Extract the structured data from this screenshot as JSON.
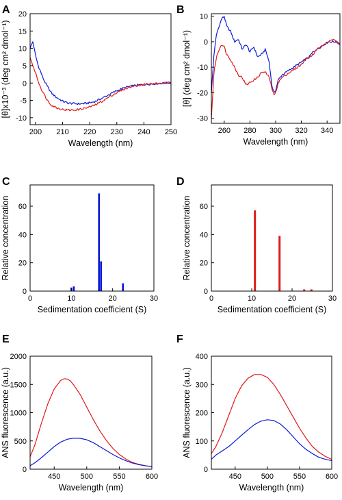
{
  "colors": {
    "blue": "#0a18d6",
    "red": "#e01818",
    "axis": "#000000"
  },
  "chart_data": [
    {
      "panel": "A",
      "type": "line",
      "xlabel": "Wavelength (nm)",
      "ylabel": "[θ]x10⁻³ (deg cm² dmol⁻¹)",
      "xlim": [
        198,
        250
      ],
      "ylim": [
        -12,
        20
      ],
      "xticks": [
        200,
        210,
        220,
        230,
        240,
        250
      ],
      "xticklabels": [
        "200",
        "210",
        "220",
        "230",
        "240",
        "250"
      ],
      "yticks": [
        -10,
        -5,
        0,
        5,
        10,
        15,
        20
      ],
      "yticklabels": [
        "-10",
        "-5",
        "0",
        "5",
        "10",
        "15",
        "20"
      ],
      "noisy": true,
      "series": [
        {
          "color": "blue",
          "x": [
            198,
            199,
            200,
            201,
            202,
            203,
            204,
            205,
            206,
            208,
            210,
            212,
            214,
            216,
            218,
            220,
            222,
            224,
            226,
            228,
            230,
            232,
            234,
            236,
            238,
            240,
            242,
            244,
            246,
            248,
            250
          ],
          "y": [
            10,
            12,
            8,
            5,
            3,
            1,
            -0.5,
            -1.8,
            -3,
            -4.3,
            -5.2,
            -5.8,
            -5.9,
            -6,
            -5.9,
            -5.7,
            -5.3,
            -4.6,
            -3.8,
            -3,
            -2.2,
            -1.6,
            -1.1,
            -0.8,
            -0.6,
            -0.4,
            -0.3,
            -0.2,
            -0.1,
            0,
            0.1
          ]
        },
        {
          "color": "red",
          "x": [
            198,
            199,
            200,
            201,
            202,
            203,
            204,
            205,
            206,
            208,
            210,
            212,
            214,
            216,
            218,
            220,
            222,
            224,
            226,
            228,
            230,
            232,
            234,
            236,
            238,
            240,
            242,
            244,
            246,
            248,
            250
          ],
          "y": [
            7.5,
            5,
            3,
            0.5,
            -1.5,
            -3,
            -4.5,
            -5.6,
            -6.4,
            -7.2,
            -7.6,
            -7.8,
            -7.8,
            -7.6,
            -7.3,
            -6.9,
            -6.3,
            -5.5,
            -4.6,
            -3.6,
            -2.8,
            -2,
            -1.4,
            -0.9,
            -0.6,
            -0.4,
            -0.3,
            -0.2,
            -0.1,
            0,
            0.1
          ]
        }
      ]
    },
    {
      "panel": "B",
      "type": "line",
      "xlabel": "Wavelength (nm)",
      "ylabel": "[θ] (deg cm² dmol⁻¹)",
      "xlim": [
        250,
        350
      ],
      "ylim": [
        -32,
        11
      ],
      "xticks": [
        260,
        280,
        300,
        320,
        340
      ],
      "xticklabels": [
        "260",
        "280",
        "300",
        "320",
        "340"
      ],
      "yticks": [
        -30,
        -20,
        -10,
        0,
        10
      ],
      "yticklabels": [
        "-30",
        "-20",
        "-10",
        "0",
        "10"
      ],
      "noisy": true,
      "series": [
        {
          "color": "blue",
          "x": [
            250,
            252,
            254,
            256,
            258,
            260,
            262,
            265,
            268,
            271,
            274,
            277,
            280,
            283,
            286,
            289,
            292,
            295,
            297,
            298,
            299,
            300,
            302,
            305,
            308,
            311,
            314,
            317,
            320,
            323,
            326,
            329,
            332,
            335,
            338,
            341,
            344,
            347,
            350
          ],
          "y": [
            -20,
            -5,
            3,
            6,
            9,
            10,
            6,
            4,
            0,
            1,
            -3,
            -1,
            -4,
            -2,
            -6,
            -5,
            -3,
            -8,
            -17,
            -19,
            -20,
            -19,
            -15,
            -13,
            -12,
            -11,
            -10,
            -9,
            -8,
            -7,
            -6,
            -4,
            -3,
            -2,
            -1,
            0,
            0,
            0,
            -1
          ]
        },
        {
          "color": "red",
          "x": [
            250,
            252,
            254,
            256,
            258,
            260,
            262,
            265,
            268,
            271,
            274,
            277,
            280,
            283,
            286,
            289,
            292,
            295,
            297,
            298,
            299,
            300,
            302,
            305,
            308,
            311,
            314,
            317,
            320,
            323,
            326,
            329,
            332,
            335,
            338,
            341,
            344,
            347,
            350
          ],
          "y": [
            -30,
            -12,
            -6,
            -3,
            -1,
            -2,
            -5,
            -7,
            -10,
            -13,
            -14,
            -17,
            -16,
            -15,
            -14,
            -12,
            -12,
            -14,
            -18,
            -20,
            -21,
            -20,
            -16,
            -14,
            -13,
            -12,
            -11,
            -10,
            -9,
            -7,
            -6,
            -5,
            -3,
            -2,
            -1,
            0,
            1,
            0,
            -1
          ]
        }
      ]
    },
    {
      "panel": "C",
      "type": "bar",
      "xlabel": "Sedimentation coefficient (S)",
      "ylabel": "Relative concentration",
      "xlim": [
        0,
        30
      ],
      "ylim": [
        0,
        75
      ],
      "xticks": [
        0,
        10,
        20,
        30
      ],
      "xticklabels": [
        "0",
        "10",
        "20",
        "30"
      ],
      "yticks": [
        0,
        20,
        40,
        60
      ],
      "yticklabels": [
        "0",
        "20",
        "40",
        "60"
      ],
      "bar_width": 0.45,
      "series": [
        {
          "color": "blue",
          "x": [
            10.0,
            10.6,
            16.7,
            17.2,
            22.5
          ],
          "y": [
            2.5,
            3.3,
            69,
            21,
            5.5
          ]
        }
      ]
    },
    {
      "panel": "D",
      "type": "bar",
      "xlabel": "Sedimentation coefficient (S)",
      "ylabel": "Relative concentration",
      "xlim": [
        0,
        30
      ],
      "ylim": [
        0,
        75
      ],
      "xticks": [
        0,
        10,
        20,
        30
      ],
      "xticklabels": [
        "0",
        "10",
        "20",
        "30"
      ],
      "yticks": [
        0,
        20,
        40,
        60
      ],
      "yticklabels": [
        "0",
        "20",
        "40",
        "60"
      ],
      "bar_width": 0.5,
      "series": [
        {
          "color": "red",
          "x": [
            10.8,
            16.9,
            23.0,
            24.8
          ],
          "y": [
            57,
            39,
            1.2,
            1.2
          ]
        }
      ]
    },
    {
      "panel": "E",
      "type": "line",
      "xlabel": "Wavelength (nm)",
      "ylabel": "ANS fluorescence (a.u.)",
      "xlim": [
        413,
        600
      ],
      "ylim": [
        0,
        2000
      ],
      "xticks": [
        450,
        500,
        550,
        600
      ],
      "xticklabels": [
        "450",
        "500",
        "550",
        "600"
      ],
      "yticks": [
        0,
        500,
        1000,
        1500,
        2000
      ],
      "yticklabels": [
        "0",
        "500",
        "1000",
        "1500",
        "2000"
      ],
      "noisy": false,
      "series": [
        {
          "color": "red",
          "x": [
            413,
            420,
            430,
            440,
            450,
            460,
            465,
            470,
            475,
            480,
            490,
            500,
            510,
            520,
            530,
            540,
            550,
            560,
            570,
            580,
            590,
            600
          ],
          "y": [
            220,
            420,
            800,
            1150,
            1420,
            1570,
            1600,
            1595,
            1560,
            1490,
            1320,
            1100,
            880,
            680,
            510,
            370,
            260,
            180,
            120,
            85,
            60,
            45
          ]
        },
        {
          "color": "blue",
          "x": [
            413,
            420,
            430,
            440,
            450,
            460,
            470,
            480,
            490,
            500,
            510,
            520,
            530,
            540,
            550,
            560,
            570,
            580,
            590,
            600
          ],
          "y": [
            60,
            110,
            200,
            300,
            400,
            480,
            530,
            550,
            545,
            520,
            470,
            400,
            330,
            260,
            200,
            150,
            110,
            80,
            60,
            45
          ]
        }
      ]
    },
    {
      "panel": "F",
      "type": "line",
      "xlabel": "Wavelength (nm)",
      "ylabel": "ANS fluorescence (a.u.)",
      "xlim": [
        413,
        600
      ],
      "ylim": [
        0,
        400
      ],
      "xticks": [
        450,
        500,
        550,
        600
      ],
      "xticklabels": [
        "450",
        "500",
        "550",
        "600"
      ],
      "yticks": [
        0,
        100,
        200,
        300,
        400
      ],
      "yticklabels": [
        "0",
        "100",
        "200",
        "300",
        "400"
      ],
      "noisy": false,
      "series": [
        {
          "color": "red",
          "x": [
            413,
            420,
            430,
            440,
            450,
            460,
            470,
            480,
            490,
            500,
            510,
            520,
            530,
            540,
            550,
            560,
            570,
            580,
            590,
            600
          ],
          "y": [
            55,
            80,
            130,
            190,
            250,
            295,
            322,
            335,
            335,
            325,
            300,
            265,
            225,
            185,
            145,
            110,
            80,
            60,
            45,
            35
          ]
        },
        {
          "color": "blue",
          "x": [
            413,
            420,
            430,
            440,
            450,
            460,
            470,
            480,
            490,
            500,
            510,
            520,
            530,
            540,
            550,
            560,
            570,
            580,
            590,
            600
          ],
          "y": [
            35,
            50,
            65,
            80,
            100,
            120,
            140,
            158,
            170,
            175,
            172,
            160,
            140,
            115,
            90,
            70,
            55,
            42,
            35,
            30
          ]
        }
      ]
    }
  ]
}
